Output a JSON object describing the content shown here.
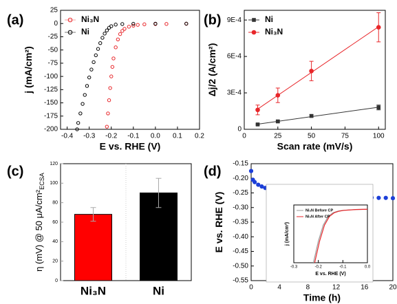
{
  "chart_data": [
    {
      "type": "scatter",
      "panel_label": "(a)",
      "xlabel": "E vs. RHE (V)",
      "ylabel": "j (mA/cm²)",
      "xlim": [
        -0.43,
        0.2
      ],
      "xticks": [
        -0.4,
        -0.3,
        -0.2,
        -0.1,
        {
          "value": 0,
          "label": "0.0"
        },
        0.1,
        0.2
      ],
      "ylim": [
        -200,
        25
      ],
      "yticks": [
        25,
        0,
        -25,
        -50,
        -75,
        -100,
        -125,
        -150,
        -175,
        -200
      ],
      "legend": "upper left",
      "series": [
        {
          "name": "Ni₃N",
          "color": "#e8262a",
          "marker": "open-circle",
          "x": [
            -0.22,
            -0.215,
            -0.21,
            -0.205,
            -0.2,
            -0.195,
            -0.19,
            -0.18,
            -0.17,
            -0.16,
            -0.15,
            -0.14,
            -0.12,
            -0.1,
            -0.08,
            -0.05,
            0,
            0.05,
            0.14
          ],
          "values": [
            -195,
            -170,
            -145,
            -122,
            -100,
            -82,
            -66,
            -45,
            -30,
            -20,
            -14,
            -10,
            -6,
            -4,
            -2.5,
            -1.5,
            -1,
            -0.8,
            -0.5
          ]
        },
        {
          "name": "Ni",
          "color": "#000000",
          "marker": "open-circle",
          "x": [
            -0.355,
            -0.35,
            -0.34,
            -0.33,
            -0.32,
            -0.31,
            -0.3,
            -0.29,
            -0.28,
            -0.27,
            -0.26,
            -0.25,
            -0.24,
            -0.23,
            -0.22,
            -0.21,
            -0.2,
            -0.18,
            -0.15,
            -0.1,
            0,
            0.14
          ],
          "values": [
            -200,
            -188,
            -170,
            -152,
            -135,
            -118,
            -102,
            -87,
            -73,
            -60,
            -48,
            -37,
            -27,
            -19,
            -13,
            -8,
            -5,
            -2,
            -1,
            -0.5,
            -0.3,
            -0.2
          ]
        }
      ]
    },
    {
      "type": "scatter",
      "panel_label": "(b)",
      "xlabel": "Scan rate (mV/s)",
      "ylabel": "Δj/2 (A/cm²)",
      "xlim": [
        0,
        105
      ],
      "xticks": [
        0,
        25,
        50,
        75,
        100
      ],
      "ylim": [
        0,
        0.00098
      ],
      "yticks": [
        0,
        {
          "value": 0.0003,
          "label": "3E-4"
        },
        {
          "value": 0.0006,
          "label": "6E-4"
        },
        {
          "value": 0.0009,
          "label": "9E-4"
        }
      ],
      "legend": "upper left",
      "fit_line": true,
      "x": [
        10,
        25,
        50,
        100
      ],
      "series": [
        {
          "name": "Ni",
          "color": "#333333",
          "marker": "square",
          "values": [
            4e-05,
            6.5e-05,
            0.00011,
            0.00018
          ],
          "errors": [
            5e-06,
            8e-06,
            1e-05,
            2e-05
          ]
        },
        {
          "name": "Ni₃N",
          "color": "#e8262a",
          "marker": "circle",
          "values": [
            0.00016,
            0.00028,
            0.00048,
            0.00084
          ],
          "errors": [
            4e-05,
            6e-05,
            8e-05,
            0.00012
          ]
        }
      ]
    },
    {
      "type": "bar",
      "panel_label": "(c)",
      "ylabel": "η (mV) @ 50 μA/cm²",
      "ylabel_sub": "ECSA",
      "categories": [
        "Ni₃N",
        "Ni"
      ],
      "values": [
        68,
        90
      ],
      "errors": [
        7,
        15
      ],
      "colors": [
        "#ff0000",
        "#000000"
      ],
      "ylim": [
        0,
        120
      ],
      "yticks": [
        0,
        20,
        40,
        60,
        80,
        100,
        120
      ]
    },
    {
      "type": "scatter",
      "panel_label": "(d)",
      "xlabel": "Time (h)",
      "ylabel": "E vs. RHE (V)",
      "xlim": [
        0,
        20
      ],
      "xticks": [
        0,
        4,
        8,
        12,
        16,
        20
      ],
      "ylim": [
        -0.55,
        -0.15
      ],
      "yticks": [
        -0.15,
        {
          "value": -0.2,
          "label": "-0.20"
        },
        -0.25,
        {
          "value": -0.3,
          "label": "-0.30"
        },
        -0.35,
        {
          "value": -0.4,
          "label": "-0.40"
        },
        -0.45,
        {
          "value": -0.5,
          "label": "-0.50"
        },
        -0.55
      ],
      "x": [
        0,
        0.25,
        0.5,
        1,
        1.5,
        2,
        3,
        4,
        5,
        6,
        7,
        8,
        9,
        10,
        11,
        12,
        13,
        14,
        15,
        16,
        17,
        18,
        19,
        20
      ],
      "series": [
        {
          "color": "#1c3fd8",
          "marker": "circle",
          "values": [
            -0.175,
            -0.205,
            -0.213,
            -0.222,
            -0.228,
            -0.233,
            -0.24,
            -0.245,
            -0.249,
            -0.252,
            -0.254,
            -0.256,
            -0.258,
            -0.26,
            -0.261,
            -0.262,
            -0.263,
            -0.264,
            -0.265,
            -0.266,
            -0.266,
            -0.267,
            -0.267,
            -0.268
          ]
        }
      ]
    },
    {
      "type": "line",
      "xlabel": "E vs. RHE (V)",
      "ylabel": "j (mA/cm²)",
      "xlim": [
        -0.3,
        0
      ],
      "xticks": [
        -0.3,
        -0.2,
        -0.1,
        {
          "value": 0,
          "label": "0.0"
        }
      ],
      "ylim": [
        -200,
        15
      ],
      "legend": "upper left",
      "series": [
        {
          "name": "Ni₃N Before CP",
          "color": "#999999",
          "x": [
            -0.22,
            -0.2,
            -0.18,
            -0.16,
            -0.14,
            -0.12,
            -0.1,
            -0.05,
            0
          ],
          "values": [
            -200,
            -120,
            -60,
            -28,
            -14,
            -8,
            -5,
            -2,
            -1
          ]
        },
        {
          "name": "Ni₃N After CP",
          "color": "#e8262a",
          "x": [
            -0.215,
            -0.195,
            -0.175,
            -0.155,
            -0.135,
            -0.115,
            -0.095,
            -0.045,
            0
          ],
          "values": [
            -200,
            -120,
            -60,
            -28,
            -14,
            -8,
            -5,
            -2,
            -1
          ]
        }
      ]
    }
  ]
}
